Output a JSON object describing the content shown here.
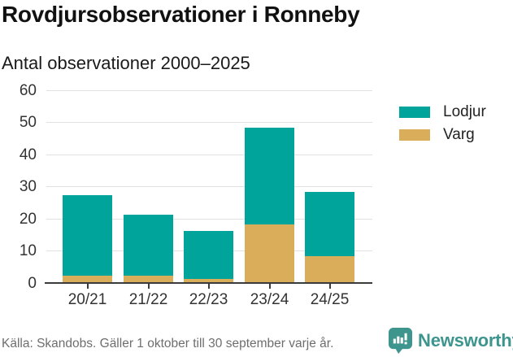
{
  "chart_data": {
    "type": "bar",
    "stacked": true,
    "title": "Rovdjursobservationer i Ronneby",
    "subtitle": "Antal observationer 2000–2025",
    "categories": [
      "20/21",
      "21/22",
      "22/23",
      "23/24",
      "24/25"
    ],
    "series": [
      {
        "name": "Lodjur",
        "color": "#00a49b",
        "values": [
          25,
          19,
          15,
          30,
          20
        ]
      },
      {
        "name": "Varg",
        "color": "#d9ad59",
        "values": [
          2,
          2,
          1,
          18,
          8
        ]
      }
    ],
    "stack_bottom_to_top": [
      "Varg",
      "Lodjur"
    ],
    "totals": [
      27,
      21,
      16,
      48,
      28
    ],
    "ylim": [
      0,
      60
    ],
    "yticks": [
      0,
      10,
      20,
      30,
      40,
      50,
      60
    ],
    "grid": "horizontal",
    "legend_position": "right-top"
  },
  "legend": {
    "items": [
      {
        "label": "Lodjur",
        "color": "#00a49b"
      },
      {
        "label": "Varg",
        "color": "#d9ad59"
      }
    ]
  },
  "footer": {
    "source": "Källa: Skandobs. Gäller 1 oktober till 30 september varje år.",
    "brand": "Newsworthy",
    "brand_color": "#3d958e"
  }
}
